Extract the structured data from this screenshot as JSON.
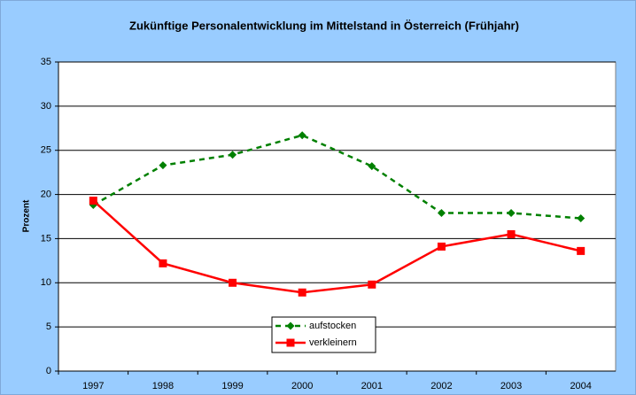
{
  "chart_data": {
    "type": "line",
    "title": "Zukünftige Personalentwicklung im Mittelstand in Österreich (Frühjahr)",
    "y_label": "Prozent",
    "categories": [
      "1997",
      "1998",
      "1999",
      "2000",
      "2001",
      "2002",
      "2003",
      "2004"
    ],
    "series": [
      {
        "name": "aufstocken",
        "color": "#008000",
        "dash": true,
        "marker": "diamond",
        "values": [
          18.8,
          23.3,
          24.5,
          26.7,
          23.2,
          17.9,
          17.9,
          17.3
        ]
      },
      {
        "name": "verkleinern",
        "color": "#ff0000",
        "dash": false,
        "marker": "square",
        "values": [
          19.3,
          12.2,
          10.0,
          8.9,
          9.8,
          14.1,
          15.5,
          13.6
        ]
      }
    ],
    "ylim": [
      0,
      35
    ],
    "yticks": [
      0,
      5,
      10,
      15,
      20,
      25,
      30,
      35
    ],
    "grid": true
  }
}
